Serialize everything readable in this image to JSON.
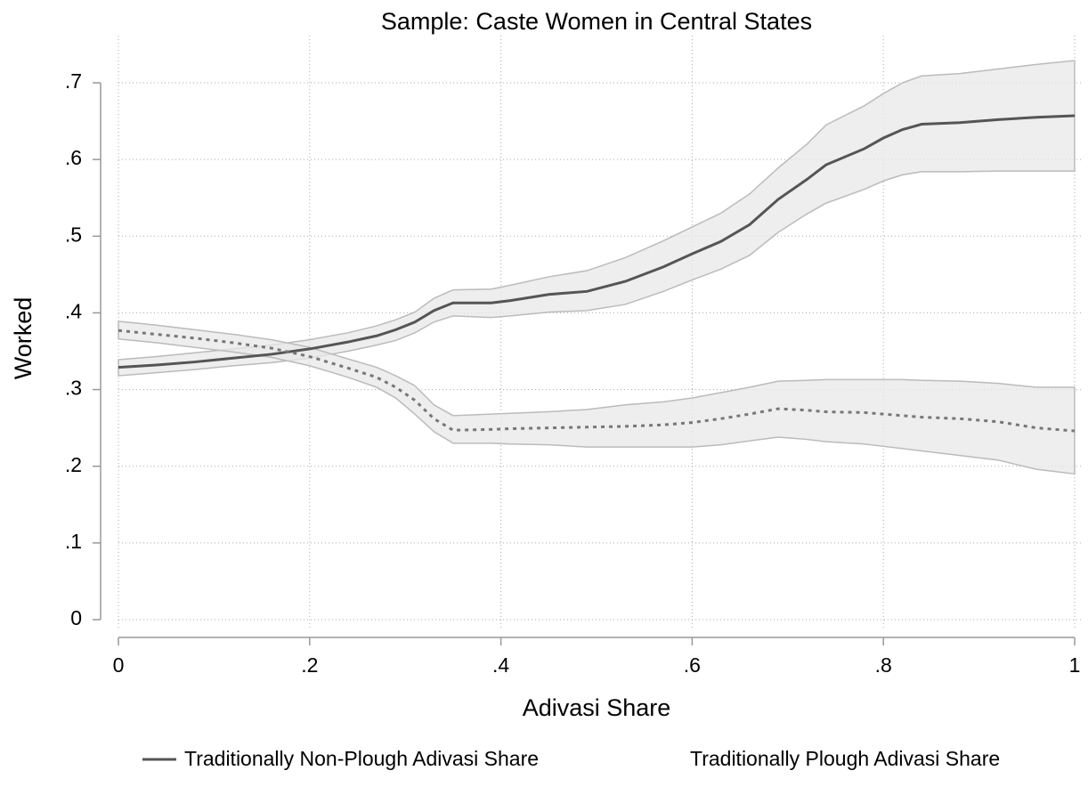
{
  "chart_data": {
    "type": "line",
    "title": "Sample: Caste Women in Central States",
    "xlabel": "Adivasi Share",
    "ylabel": "Worked",
    "x": [
      0,
      0.04,
      0.08,
      0.12,
      0.16,
      0.2,
      0.24,
      0.27,
      0.29,
      0.31,
      0.33,
      0.35,
      0.39,
      0.41,
      0.45,
      0.49,
      0.53,
      0.57,
      0.6,
      0.63,
      0.66,
      0.69,
      0.72,
      0.74,
      0.78,
      0.8,
      0.82,
      0.84,
      0.88,
      0.92,
      0.96,
      1
    ],
    "series": [
      {
        "name": "Traditionally Non-Plough Adivasi Share",
        "color": "#555555",
        "dash": "solid",
        "band_color": "#e8e8e8",
        "values": [
          0.329,
          0.332,
          0.336,
          0.341,
          0.346,
          0.353,
          0.362,
          0.37,
          0.378,
          0.388,
          0.403,
          0.413,
          0.413,
          0.416,
          0.424,
          0.428,
          0.441,
          0.46,
          0.477,
          0.493,
          0.515,
          0.548,
          0.574,
          0.593,
          0.614,
          0.628,
          0.639,
          0.646,
          0.648,
          0.652,
          0.655,
          0.657
        ],
        "upper": [
          0.339,
          0.343,
          0.348,
          0.353,
          0.358,
          0.365,
          0.374,
          0.383,
          0.391,
          0.401,
          0.419,
          0.43,
          0.431,
          0.436,
          0.447,
          0.455,
          0.472,
          0.494,
          0.512,
          0.53,
          0.555,
          0.589,
          0.62,
          0.645,
          0.67,
          0.686,
          0.7,
          0.709,
          0.712,
          0.718,
          0.724,
          0.729
        ],
        "lower": [
          0.318,
          0.322,
          0.326,
          0.331,
          0.335,
          0.341,
          0.35,
          0.358,
          0.364,
          0.374,
          0.388,
          0.396,
          0.394,
          0.396,
          0.401,
          0.403,
          0.411,
          0.428,
          0.443,
          0.457,
          0.475,
          0.505,
          0.529,
          0.543,
          0.561,
          0.572,
          0.58,
          0.584,
          0.584,
          0.585,
          0.585,
          0.585
        ]
      },
      {
        "name": "Traditionally Plough Adivasi Share",
        "color": "#777777",
        "dash": "dotted",
        "band_color": "#e8e8e8",
        "values": [
          0.377,
          0.372,
          0.367,
          0.361,
          0.354,
          0.343,
          0.328,
          0.316,
          0.303,
          0.286,
          0.262,
          0.247,
          0.248,
          0.249,
          0.25,
          0.251,
          0.252,
          0.254,
          0.257,
          0.262,
          0.268,
          0.275,
          0.273,
          0.271,
          0.27,
          0.268,
          0.266,
          0.264,
          0.262,
          0.258,
          0.25,
          0.246
        ],
        "upper": [
          0.389,
          0.384,
          0.378,
          0.372,
          0.365,
          0.355,
          0.34,
          0.329,
          0.318,
          0.305,
          0.28,
          0.266,
          0.268,
          0.269,
          0.271,
          0.274,
          0.28,
          0.284,
          0.289,
          0.296,
          0.303,
          0.311,
          0.312,
          0.313,
          0.313,
          0.313,
          0.313,
          0.312,
          0.311,
          0.308,
          0.303,
          0.303
        ],
        "lower": [
          0.366,
          0.361,
          0.355,
          0.349,
          0.342,
          0.331,
          0.316,
          0.303,
          0.289,
          0.268,
          0.245,
          0.23,
          0.23,
          0.229,
          0.228,
          0.225,
          0.225,
          0.225,
          0.225,
          0.228,
          0.233,
          0.238,
          0.235,
          0.232,
          0.229,
          0.226,
          0.223,
          0.22,
          0.214,
          0.208,
          0.196,
          0.19
        ]
      }
    ],
    "xlim": [
      0,
      1
    ],
    "ylim": [
      0,
      0.7
    ],
    "xticks": [
      0,
      {
        "value": 0.2,
        "label": ".2"
      },
      {
        "value": 0.4,
        "label": ".4"
      },
      {
        "value": 0.6,
        "label": ".6"
      },
      {
        "value": 0.8,
        "label": ".8"
      },
      1
    ],
    "yticks": [
      0,
      {
        "value": 0.1,
        "label": ".1"
      },
      {
        "value": 0.2,
        "label": ".2"
      },
      {
        "value": 0.3,
        "label": ".3"
      },
      {
        "value": 0.4,
        "label": ".4"
      },
      {
        "value": 0.5,
        "label": ".5"
      },
      {
        "value": 0.6,
        "label": ".6"
      },
      {
        "value": 0.7,
        "label": ".7"
      }
    ],
    "grid": true
  }
}
